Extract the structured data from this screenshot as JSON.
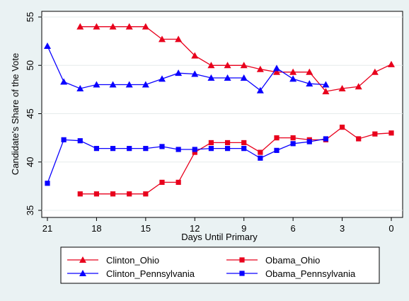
{
  "chart_data": {
    "type": "line",
    "title": "",
    "xlabel": "Days Until Primary",
    "ylabel": "Candidate's Share of the Vote",
    "xlim": [
      21,
      0
    ],
    "ylim": [
      35,
      55
    ],
    "x_ticks": [
      21,
      18,
      15,
      12,
      9,
      6,
      3,
      0
    ],
    "y_ticks": [
      35,
      40,
      45,
      50,
      55
    ],
    "grid": "horizontal",
    "legend_position": "bottom",
    "series": [
      {
        "name": "Clinton_Ohio",
        "color": "#e8001c",
        "marker": "triangle",
        "points": [
          [
            19,
            54
          ],
          [
            18,
            54
          ],
          [
            17,
            54
          ],
          [
            16,
            54
          ],
          [
            15,
            54
          ],
          [
            14,
            52.7
          ],
          [
            13,
            52.7
          ],
          [
            12,
            51
          ],
          [
            11,
            50
          ],
          [
            10,
            50
          ],
          [
            9,
            50
          ],
          [
            8,
            49.6
          ],
          [
            7,
            49.3
          ],
          [
            6,
            49.3
          ],
          [
            5,
            49.3
          ],
          [
            4,
            47.3
          ],
          [
            3,
            47.6
          ],
          [
            2,
            47.8
          ],
          [
            1,
            49.3
          ],
          [
            0,
            50.1
          ]
        ]
      },
      {
        "name": "Obama_Ohio",
        "color": "#e8001c",
        "marker": "square",
        "points": [
          [
            19,
            36.7
          ],
          [
            18,
            36.7
          ],
          [
            17,
            36.7
          ],
          [
            16,
            36.7
          ],
          [
            15,
            36.7
          ],
          [
            14,
            37.9
          ],
          [
            13,
            37.9
          ],
          [
            12,
            41
          ],
          [
            11,
            42
          ],
          [
            10,
            42
          ],
          [
            9,
            42
          ],
          [
            8,
            41
          ],
          [
            7,
            42.5
          ],
          [
            6,
            42.5
          ],
          [
            5,
            42.3
          ],
          [
            4,
            42.3
          ],
          [
            3,
            43.6
          ],
          [
            2,
            42.4
          ],
          [
            1,
            42.9
          ],
          [
            0,
            43
          ]
        ]
      },
      {
        "name": "Clinton_Pennsylvania",
        "color": "#0a00ff",
        "marker": "triangle",
        "points": [
          [
            21,
            52
          ],
          [
            20,
            48.3
          ],
          [
            19,
            47.6
          ],
          [
            18,
            48
          ],
          [
            17,
            48
          ],
          [
            16,
            48
          ],
          [
            15,
            48
          ],
          [
            14,
            48.6
          ],
          [
            13,
            49.2
          ],
          [
            12,
            49.1
          ],
          [
            11,
            48.7
          ],
          [
            10,
            48.7
          ],
          [
            9,
            48.7
          ],
          [
            8,
            47.4
          ],
          [
            7,
            49.7
          ],
          [
            6,
            48.6
          ],
          [
            5,
            48.1
          ],
          [
            4,
            48
          ]
        ]
      },
      {
        "name": "Obama_Pennsylvania",
        "color": "#0a00ff",
        "marker": "square",
        "points": [
          [
            21,
            37.8
          ],
          [
            20,
            42.3
          ],
          [
            19,
            42.2
          ],
          [
            18,
            41.4
          ],
          [
            17,
            41.4
          ],
          [
            16,
            41.4
          ],
          [
            15,
            41.4
          ],
          [
            14,
            41.6
          ],
          [
            13,
            41.3
          ],
          [
            12,
            41.3
          ],
          [
            11,
            41.4
          ],
          [
            10,
            41.4
          ],
          [
            9,
            41.4
          ],
          [
            8,
            40.4
          ],
          [
            7,
            41.2
          ],
          [
            6,
            41.9
          ],
          [
            5,
            42.1
          ],
          [
            4,
            42.4
          ]
        ]
      }
    ]
  }
}
